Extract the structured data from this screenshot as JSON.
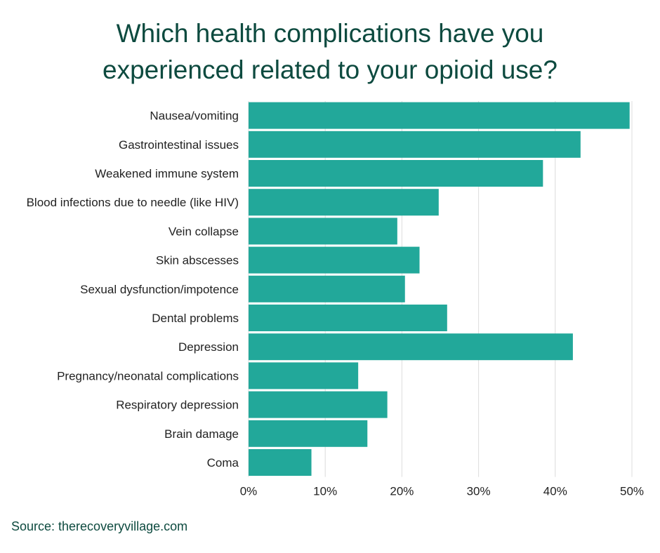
{
  "title_lines": [
    "Which health complications have you",
    "experienced related to your opioid use?"
  ],
  "source": "Source: therecoveryvillage.com",
  "colors": {
    "bar": "#22a89a",
    "title": "#0d4a3f",
    "grid": "#dcdcdc",
    "label": "#222222"
  },
  "chart_data": {
    "type": "bar",
    "orientation": "horizontal",
    "title": "Which health complications have you experienced related to your opioid use?",
    "categories": [
      "Nausea/vomiting",
      "Gastrointestinal issues",
      "Weakened immune system",
      "Blood infections due to needle (like HIV)",
      "Vein collapse",
      "Skin abscesses",
      "Sexual dysfunction/impotence",
      "Dental problems",
      "Depression",
      "Pregnancy/neonatal complications",
      "Respiratory depression",
      "Brain damage",
      "Coma"
    ],
    "values": [
      49.7,
      43.3,
      38.4,
      24.8,
      19.4,
      22.3,
      20.4,
      25.9,
      42.3,
      14.3,
      18.1,
      15.5,
      8.2
    ],
    "xlim": [
      0,
      50
    ],
    "xticks": [
      "0%",
      "10%",
      "20%",
      "30%",
      "40%",
      "50%"
    ],
    "grid": true,
    "xlabel": "",
    "ylabel": ""
  }
}
